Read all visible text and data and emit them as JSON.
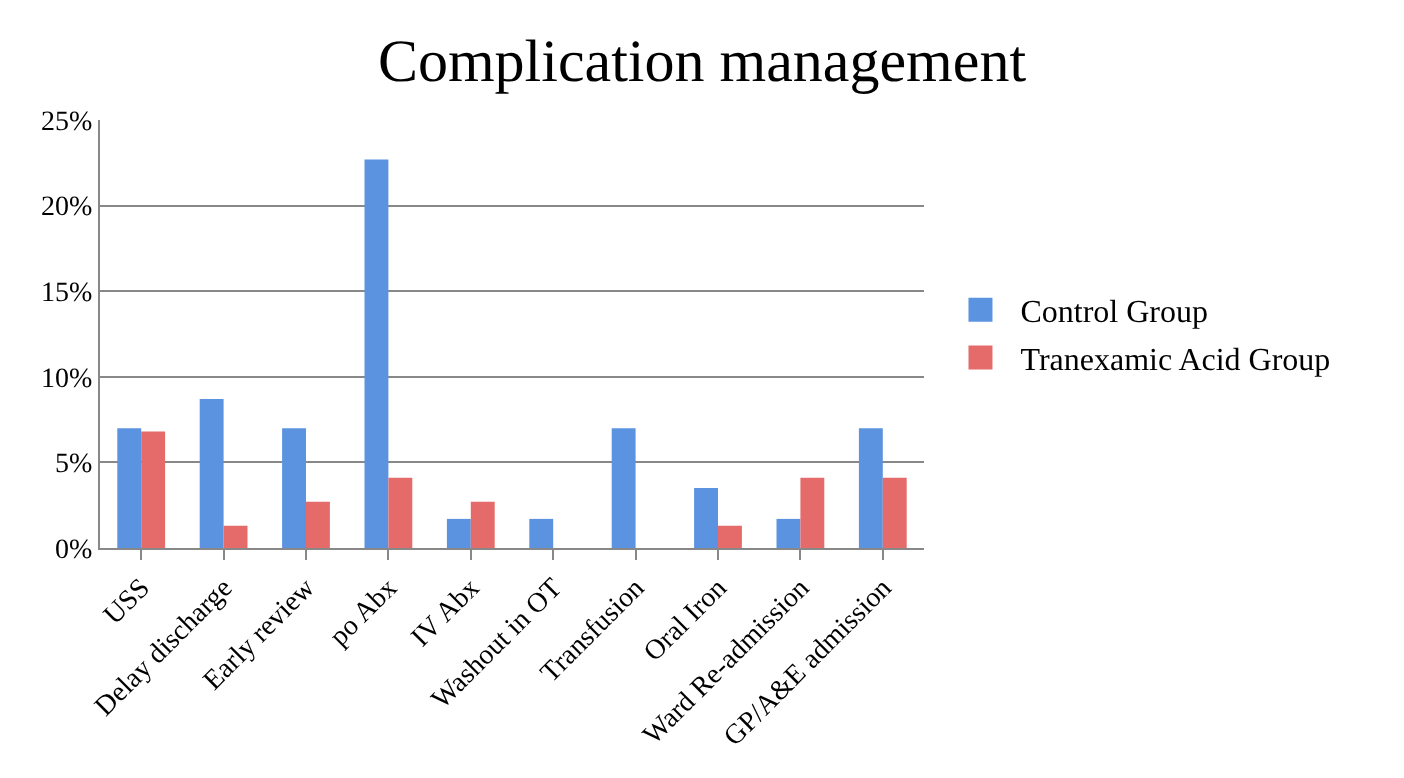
{
  "chart_data": {
    "type": "bar",
    "title": "Complication management",
    "categories": [
      "USS",
      "Delay discharge",
      "Early review",
      "po Abx",
      "IV Abx",
      "Washout in OT",
      "Transfusion",
      "Oral Iron",
      "Ward Re-admission",
      "GP/A&E admission"
    ],
    "series": [
      {
        "name": "Control Group",
        "color": "#5b93e0",
        "values": [
          7.0,
          8.7,
          7.0,
          22.7,
          1.7,
          1.7,
          7.0,
          3.5,
          1.7,
          7.0
        ]
      },
      {
        "name": "Tranexamic Acid Group",
        "color": "#e56b6b",
        "values": [
          6.8,
          1.3,
          2.7,
          4.1,
          2.7,
          0,
          0,
          1.3,
          4.1,
          4.1
        ]
      }
    ],
    "ylim": [
      0,
      25
    ],
    "yticks": [
      {
        "value": 0,
        "label": "0%"
      },
      {
        "value": 5,
        "label": "5%"
      },
      {
        "value": 10,
        "label": "10%"
      },
      {
        "value": 15,
        "label": "15%"
      },
      {
        "value": 20,
        "label": "20%"
      },
      {
        "value": 25,
        "label": "25%"
      }
    ],
    "grid": "y",
    "legend": "right"
  }
}
